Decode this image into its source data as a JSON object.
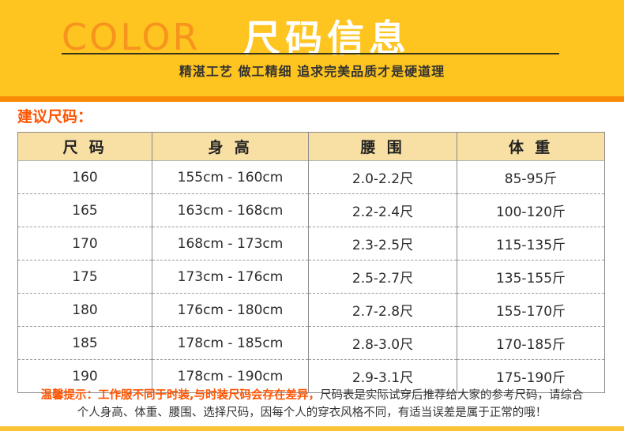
{
  "header": {
    "brand": "COLOR",
    "title": "尺码信息",
    "subtitle": "精湛工艺 做工精细 追求完美品质才是硬道理"
  },
  "section_label": "建议尺码：",
  "size_table": {
    "columns": [
      "尺 码",
      "身 高",
      "腰 围",
      "体 重"
    ],
    "rows": [
      [
        "160",
        "155cm - 160cm",
        "2.0-2.2尺",
        "85-95斤"
      ],
      [
        "165",
        "163cm - 168cm",
        "2.2-2.4尺",
        "100-120斤"
      ],
      [
        "170",
        "168cm - 173cm",
        "2.3-2.5尺",
        "115-135斤"
      ],
      [
        "175",
        "173cm - 176cm",
        "2.5-2.7尺",
        "135-155斤"
      ],
      [
        "180",
        "176cm - 180cm",
        "2.7-2.8尺",
        "155-170斤"
      ],
      [
        "185",
        "178cm - 185cm",
        "2.8-3.0尺",
        "170-185斤"
      ],
      [
        "190",
        "178cm - 190cm",
        "2.9-3.1尺",
        "175-190斤"
      ]
    ]
  },
  "tip": {
    "highlight": "温馨提示：工作服不同于时装,与时装尺码会存在差异，",
    "normal": "尺码表是实际试穿后推荐给大家的参考尺码，请综合个人身高、体重、腰围、选择尺码，因每个人的穿衣风格不同，有适当误差是属于正常的哦！"
  },
  "colors": {
    "header_bg": "#FEC41F",
    "brand_orange": "#F7941D",
    "title_text": "#FFFFFF",
    "divider_line": "#35351F",
    "orange_strip": "#F88A05",
    "section_label": "#FF5401",
    "table_header_bg": "#F8DFA3",
    "table_border": "#8C8C8C",
    "tip_highlight": "#FF5401",
    "bottom_strip": "#FBC436"
  }
}
